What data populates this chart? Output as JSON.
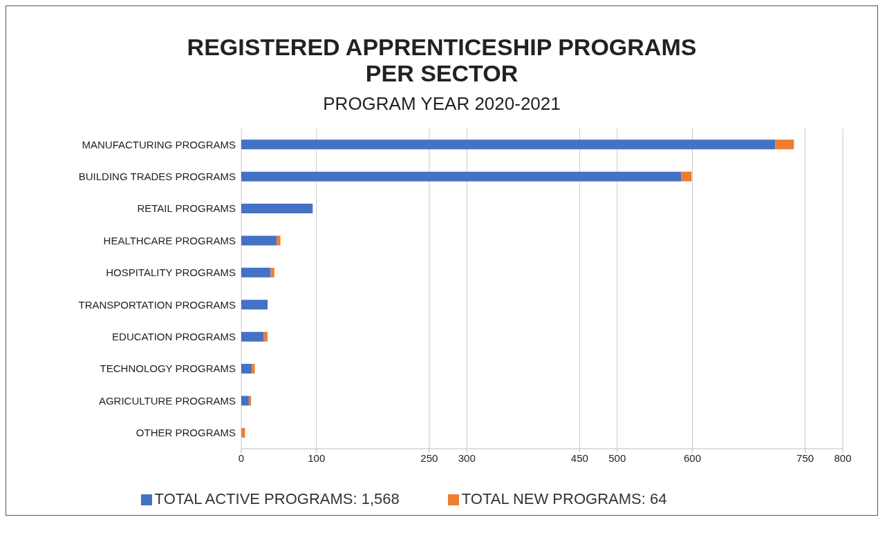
{
  "chart_data": {
    "type": "bar",
    "orientation": "horizontal",
    "stacked": true,
    "title": "REGISTERED APPRENTICESHIP PROGRAMS\nPER SECTOR",
    "subtitle": "PROGRAM YEAR 2020-2021",
    "categories": [
      "MANUFACTURING PROGRAMS",
      "BUILDING TRADES PROGRAMS",
      "RETAIL PROGRAMS",
      "HEALTHCARE PROGRAMS",
      "HOSPITALITY PROGRAMS",
      "TRANSPORTATION PROGRAMS",
      "EDUCATION PROGRAMS",
      "TECHNOLOGY PROGRAMS",
      "AGRICULTURE PROGRAMS",
      "OTHER PROGRAMS"
    ],
    "series": [
      {
        "name": "TOTAL ACTIVE PROGRAMS: 1,568",
        "color": "#4472c4",
        "values": [
          710,
          585,
          95,
          47,
          39,
          35,
          30,
          14,
          10,
          0
        ]
      },
      {
        "name": "TOTAL NEW PROGRAMS: 64",
        "color": "#ed7d31",
        "values": [
          25,
          14,
          0,
          5,
          5,
          0,
          5,
          4,
          3,
          5
        ]
      }
    ],
    "xlim": [
      0,
      800
    ],
    "xticks": [
      0,
      100,
      250,
      300,
      450,
      500,
      600,
      750,
      800
    ],
    "grid": "x",
    "legend": "bottom"
  }
}
